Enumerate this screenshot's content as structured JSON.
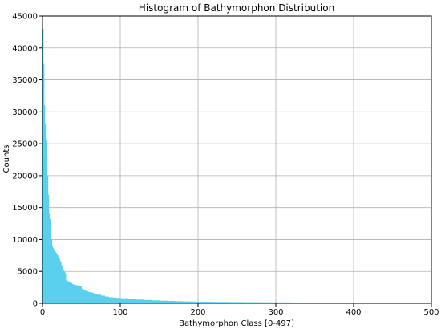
{
  "chart_data": {
    "type": "bar",
    "title": "Histogram of Bathymorphon Distribution",
    "xlabel": "Bathymorphon Class [0-497]",
    "ylabel": "Counts",
    "xlim": [
      0,
      500
    ],
    "ylim": [
      0,
      45000
    ],
    "xticks": [
      0,
      100,
      200,
      300,
      400,
      500
    ],
    "yticks": [
      0,
      5000,
      10000,
      15000,
      20000,
      25000,
      30000,
      35000,
      40000,
      45000
    ],
    "grid": true,
    "bar_color": "#5bd0ee",
    "x": [
      0,
      1,
      2,
      3,
      4,
      5,
      6,
      7,
      8,
      9,
      10,
      11,
      12,
      13,
      14,
      15,
      16,
      17,
      18,
      19,
      20,
      21,
      22,
      23,
      24,
      25,
      26,
      27,
      28,
      29,
      30,
      32,
      34,
      36,
      38,
      40,
      42,
      44,
      46,
      48,
      50,
      52,
      54,
      56,
      58,
      60,
      63,
      66,
      70,
      75,
      80,
      85,
      90,
      95,
      100,
      110,
      120,
      130,
      140,
      150,
      160,
      170,
      180,
      190,
      200,
      220,
      240,
      260,
      280,
      300,
      320,
      340,
      360,
      380,
      400,
      420,
      440,
      460,
      480,
      496
    ],
    "values": [
      43000,
      37500,
      31000,
      28000,
      25500,
      23000,
      20000,
      17000,
      14000,
      13200,
      12200,
      10000,
      9000,
      8700,
      8500,
      8300,
      8100,
      7900,
      7700,
      7500,
      7200,
      7000,
      6700,
      6400,
      6000,
      5600,
      5300,
      5100,
      4900,
      4700,
      3600,
      3450,
      3300,
      3150,
      3000,
      2900,
      2850,
      2800,
      2750,
      2650,
      2300,
      2150,
      2000,
      1900,
      1800,
      1750,
      1650,
      1500,
      1350,
      1200,
      1050,
      950,
      900,
      850,
      800,
      700,
      600,
      530,
      470,
      420,
      380,
      340,
      300,
      270,
      240,
      220,
      200,
      180,
      160,
      150,
      130,
      120,
      110,
      100,
      90,
      80,
      70,
      60,
      50,
      40
    ]
  }
}
